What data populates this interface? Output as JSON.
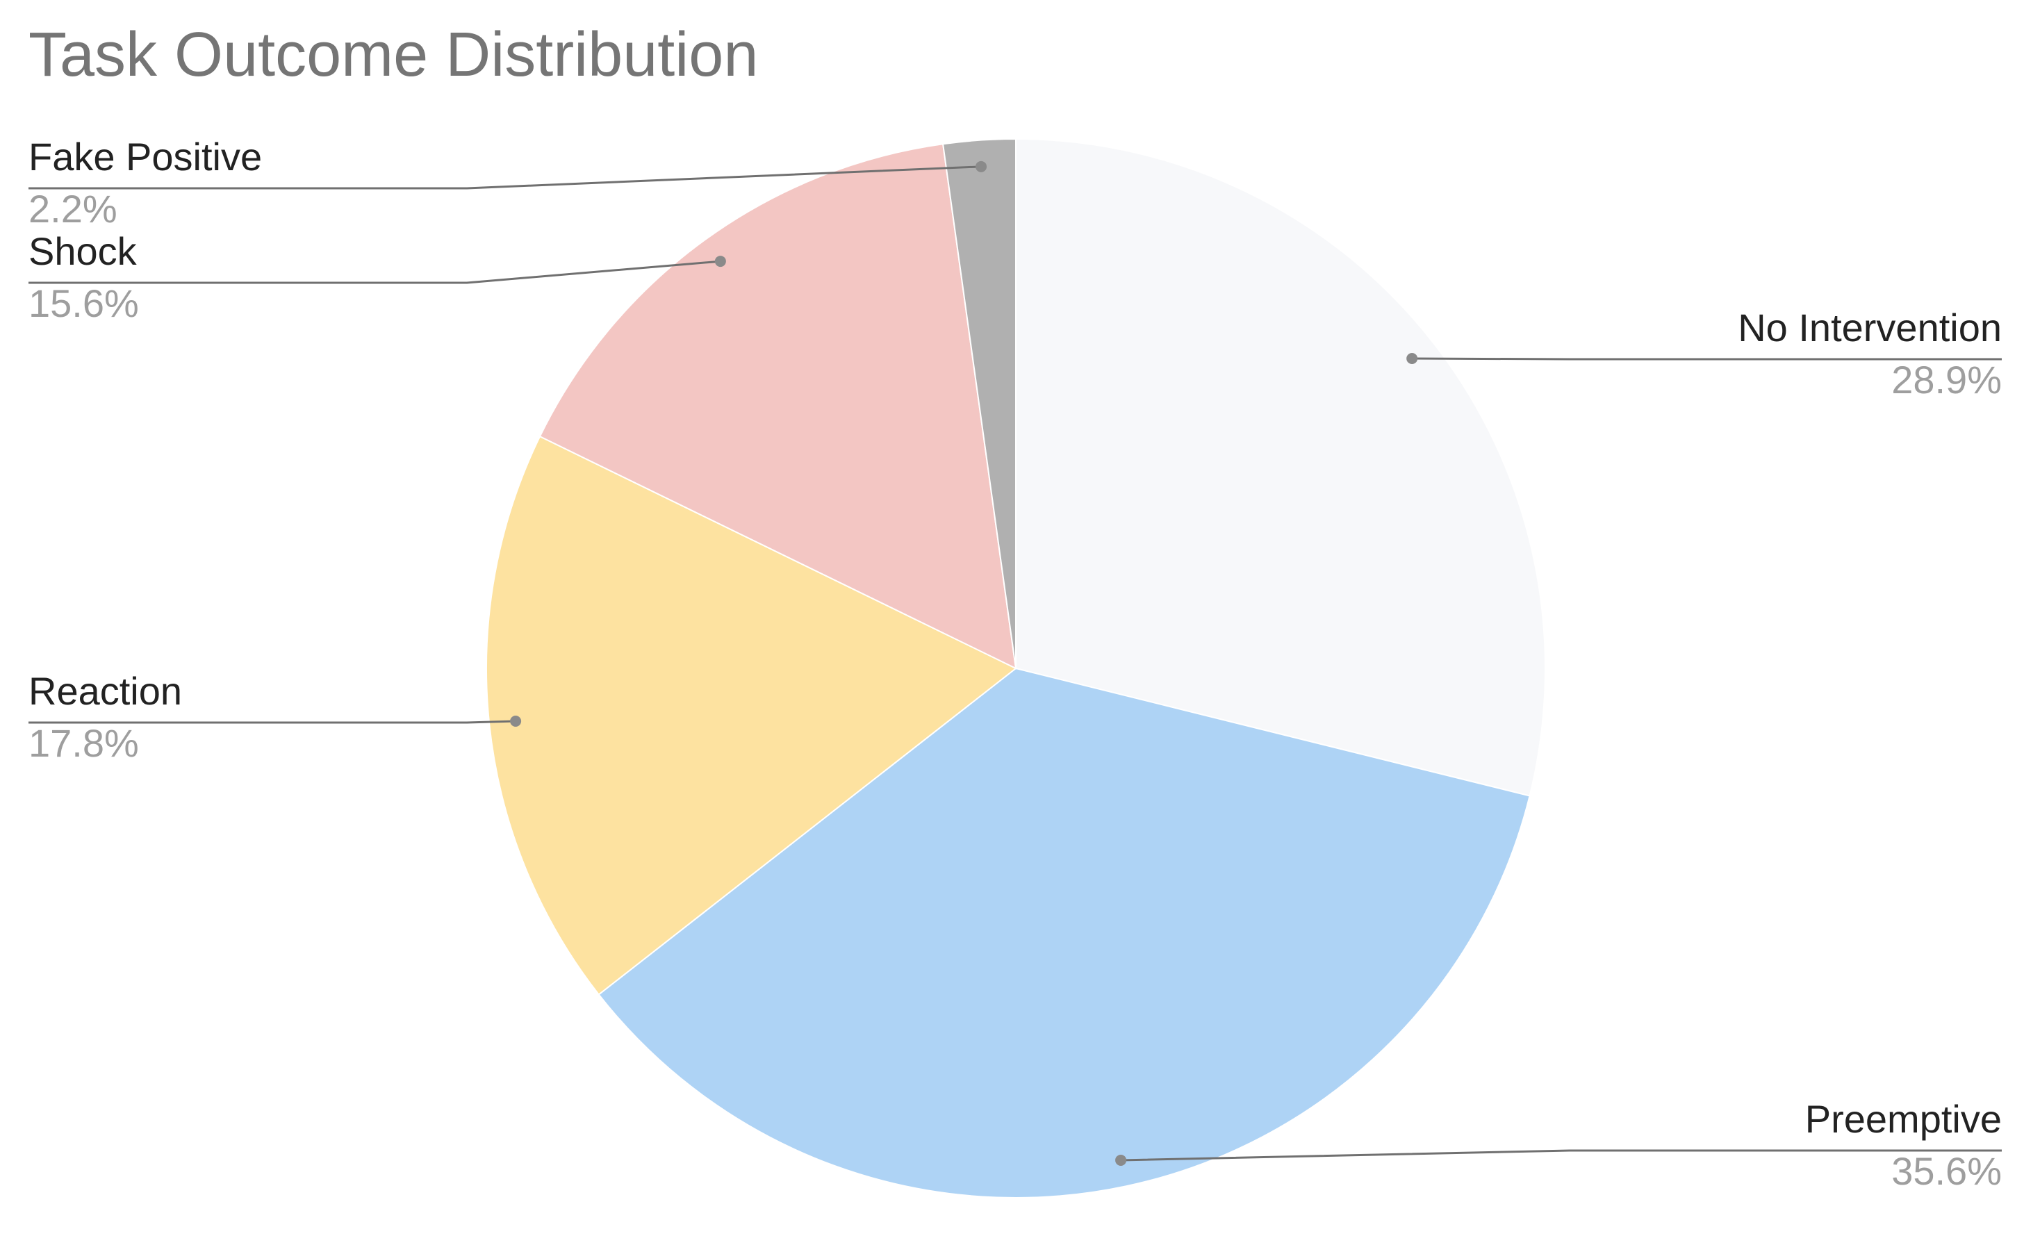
{
  "chart_data": {
    "type": "pie",
    "title": "Task Outcome Distribution",
    "categories": [
      "No Intervention",
      "Preemptive",
      "Reaction",
      "Shock",
      "Fake Positive"
    ],
    "values": [
      28.9,
      35.6,
      17.8,
      15.6,
      2.2
    ],
    "value_labels": [
      "28.9%",
      "35.6%",
      "17.8%",
      "15.6%",
      "2.2%"
    ],
    "colors": [
      "#f7f8fa",
      "#aed3f5",
      "#fde2a0",
      "#f3c6c3",
      "#b0b0b0"
    ]
  }
}
